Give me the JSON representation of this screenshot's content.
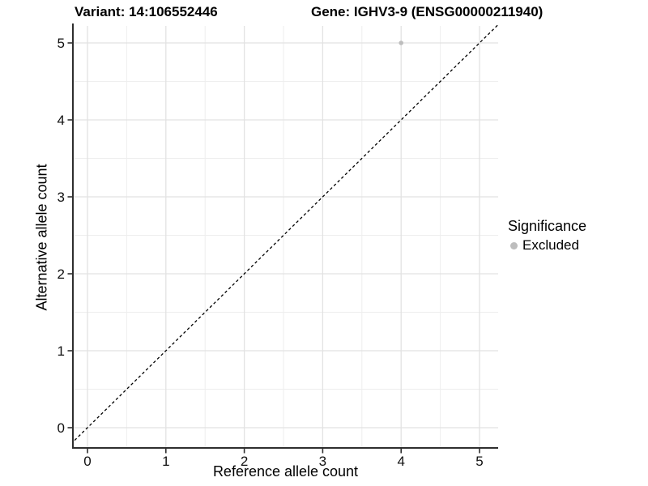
{
  "chart_data": {
    "type": "scatter",
    "titles": {
      "left": "Variant: 14:106552446",
      "right": "Gene: IGHV3-9 (ENSG00000211940)"
    },
    "xlabel": "Reference allele count",
    "ylabel": "Alternative allele count",
    "xticks": [
      0,
      1,
      2,
      3,
      4,
      5
    ],
    "yticks": [
      0,
      1,
      2,
      3,
      4,
      5
    ],
    "xlim": [
      -0.25,
      5.25
    ],
    "ylim": [
      -0.25,
      5.25
    ],
    "minor_grid_step": 0.5,
    "grid": "major and minor, light gray on white panel",
    "points": [
      {
        "x": 4,
        "y": 5,
        "series": "Excluded"
      }
    ],
    "reference_line": {
      "type": "identity",
      "equation": "y = x",
      "linetype": "dashed",
      "color": "#000000"
    },
    "legend": {
      "title": "Significance",
      "position": "right",
      "entries": [
        {
          "label": "Excluded",
          "color": "#bdbdbd"
        }
      ]
    },
    "colors": {
      "point": "#bdbdbd",
      "grid_major": "#e2e2e2",
      "grid_minor": "#eeeeee",
      "axis_line": "#2e2e2e",
      "tick_text": "#111111",
      "background": "#ffffff"
    }
  }
}
